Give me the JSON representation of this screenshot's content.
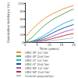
{
  "chart_data": {
    "type": "line",
    "x_label": "Time (years)",
    "y_label": "Cumulative incidence (%)",
    "x": [
      0,
      2.5,
      5,
      7.5,
      10,
      12.5,
      15,
      17.5,
      20
    ],
    "xlim": [
      0,
      20
    ],
    "xticks": [
      0,
      5,
      10,
      15,
      20
    ],
    "ylim": [
      0,
      100
    ],
    "yticks": [
      0,
      20,
      40,
      60,
      80,
      100
    ],
    "grid": false,
    "legend": "bottom",
    "series": [
      {
        "name": "HBV SF 1st tier",
        "color": "#f28e2b",
        "values": [
          12,
          30,
          45,
          58,
          68,
          76,
          83,
          89,
          94
        ]
      },
      {
        "name": "HBV SF 2nd tier",
        "color": "#59a14f",
        "values": [
          0,
          10,
          25,
          40,
          52,
          62,
          70,
          78,
          85
        ]
      },
      {
        "name": "HBV LF 1st tier",
        "color": "#17becf",
        "values": [
          0,
          2,
          8,
          16,
          26,
          36,
          45,
          52,
          58
        ]
      },
      {
        "name": "HBV LF 2nd tier",
        "color": "#1f4e9c",
        "values": [
          0,
          1,
          5,
          11,
          19,
          27,
          34,
          40,
          45
        ]
      },
      {
        "name": "HBV NF 1st tier",
        "color": "#9467bd",
        "values": [
          0,
          1,
          3,
          7,
          12,
          18,
          24,
          29,
          33
        ]
      },
      {
        "name": "HBV NF 2nd tier",
        "color": "#d62728",
        "values": [
          0,
          0,
          2,
          4,
          7,
          11,
          15,
          19,
          22
        ]
      },
      {
        "name": "Overall population",
        "color": "#9ecae1",
        "values": [
          0,
          0,
          1,
          2,
          3,
          5,
          7,
          9,
          11
        ]
      }
    ]
  }
}
